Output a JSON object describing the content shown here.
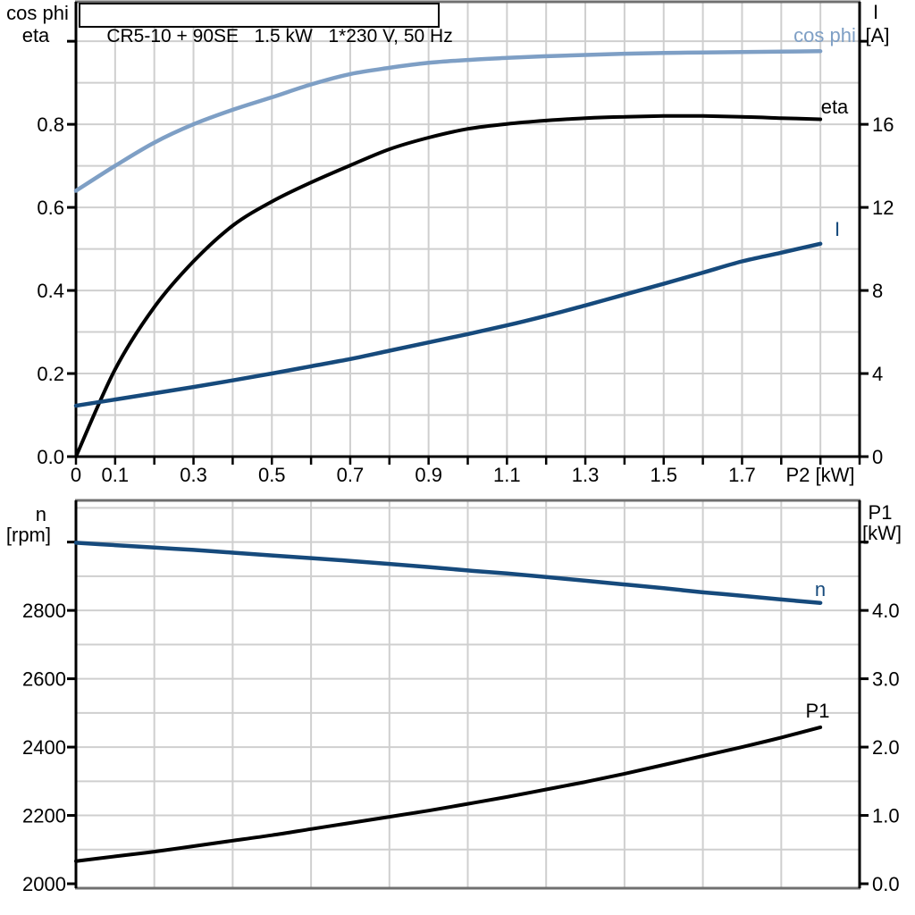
{
  "title": "CR5-10 + 90SE   1.5 kW   1*230 V, 50 Hz",
  "colors": {
    "cos_phi": "#7e9fc5",
    "eta": "#000000",
    "current": "#164a7c",
    "speed": "#164a7c",
    "p1": "#000000",
    "grid": "#cfcfcf",
    "frame": "#707070",
    "axis": "#000000"
  },
  "chart_data": [
    {
      "type": "line",
      "title": "CR5-10 + 90SE   1.5 kW   1*230 V, 50 Hz",
      "x_label": "P2 [kW]",
      "x_range": [
        0,
        2.0
      ],
      "x_tick_step": 0.1,
      "x_tick_label_values": [
        0,
        0.1,
        0.3,
        0.5,
        0.7,
        0.9,
        1.1,
        1.3,
        1.5,
        1.7
      ],
      "x_tick_labels": [
        "0",
        "0.1",
        "0.3",
        "0.5",
        "0.7",
        "0.9",
        "1.1",
        "1.3",
        "1.5",
        "1.7"
      ],
      "grid": true,
      "legend_position": "inline-curve-labels",
      "y_left": {
        "header": [
          "cos phi",
          "eta"
        ],
        "range": [
          0,
          1.095
        ],
        "tick_values": [
          0,
          0.2,
          0.4,
          0.6,
          0.8,
          1.0
        ],
        "tick_labels": [
          "0.0",
          "0.2",
          "0.4",
          "0.6",
          "0.8",
          ""
        ]
      },
      "y_right": {
        "header": [
          "I",
          "[A]"
        ],
        "range": [
          0,
          21.9
        ],
        "tick_values": [
          0,
          4,
          8,
          12,
          16,
          20
        ],
        "tick_labels": [
          "0",
          "4",
          "8",
          "12",
          "16",
          ""
        ]
      },
      "x": [
        0,
        0.1,
        0.2,
        0.3,
        0.4,
        0.5,
        0.6,
        0.7,
        0.8,
        0.9,
        1.0,
        1.1,
        1.2,
        1.3,
        1.4,
        1.5,
        1.6,
        1.7,
        1.8,
        1.9
      ],
      "series": [
        {
          "name": "cos phi",
          "axis": "left",
          "color_key": "cos_phi",
          "values": [
            0.64,
            0.7,
            0.756,
            0.8,
            0.835,
            0.865,
            0.896,
            0.921,
            0.936,
            0.948,
            0.955,
            0.96,
            0.964,
            0.967,
            0.97,
            0.972,
            0.973,
            0.974,
            0.975,
            0.976
          ]
        },
        {
          "name": "eta",
          "axis": "left",
          "color_key": "eta",
          "values": [
            0,
            0.21,
            0.36,
            0.47,
            0.556,
            0.614,
            0.66,
            0.701,
            0.74,
            0.768,
            0.789,
            0.801,
            0.809,
            0.815,
            0.818,
            0.82,
            0.82,
            0.818,
            0.815,
            0.812
          ]
        },
        {
          "name": "I",
          "axis": "right",
          "color_key": "current",
          "values": [
            2.45,
            2.75,
            3.05,
            3.35,
            3.67,
            4.0,
            4.35,
            4.7,
            5.1,
            5.5,
            5.9,
            6.32,
            6.78,
            7.28,
            7.8,
            8.32,
            8.86,
            9.4,
            9.82,
            10.25
          ]
        }
      ]
    },
    {
      "type": "line",
      "x_label": "",
      "x_range": [
        0,
        2.0
      ],
      "grid": true,
      "legend_position": "inline-curve-labels",
      "y_left": {
        "header": [
          "n",
          "[rpm]"
        ],
        "range": [
          1987,
          3122
        ],
        "tick_values": [
          2000,
          2200,
          2400,
          2600,
          2800,
          3000
        ],
        "tick_labels": [
          "2000",
          "2200",
          "2400",
          "2600",
          "2800",
          ""
        ]
      },
      "y_right": {
        "header": [
          "P1",
          "[kW]"
        ],
        "range": [
          -0.065,
          5.61
        ],
        "tick_values": [
          0,
          1,
          2,
          3,
          4,
          5
        ],
        "tick_labels": [
          "0.0",
          "1.0",
          "2.0",
          "3.0",
          "4.0",
          ""
        ]
      },
      "x": [
        0,
        0.1,
        0.2,
        0.3,
        0.4,
        0.5,
        0.6,
        0.7,
        0.8,
        0.9,
        1.0,
        1.1,
        1.2,
        1.3,
        1.4,
        1.5,
        1.6,
        1.7,
        1.8,
        1.9
      ],
      "series": [
        {
          "name": "n",
          "axis": "left",
          "color_key": "speed",
          "values": [
            2998,
            2991,
            2984,
            2977,
            2969,
            2961,
            2953,
            2945,
            2936,
            2927,
            2917,
            2908,
            2898,
            2887,
            2876,
            2865,
            2853,
            2843,
            2832,
            2822
          ]
        },
        {
          "name": "P1",
          "axis": "right",
          "color_key": "p1",
          "values": [
            0.33,
            0.4,
            0.47,
            0.55,
            0.63,
            0.71,
            0.8,
            0.89,
            0.98,
            1.07,
            1.17,
            1.27,
            1.38,
            1.49,
            1.61,
            1.74,
            1.87,
            2.0,
            2.14,
            2.29
          ]
        }
      ]
    }
  ]
}
